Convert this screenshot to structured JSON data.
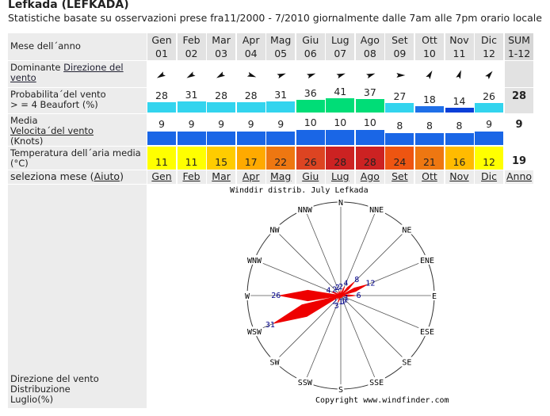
{
  "header": {
    "title": "Lefkada (LEFKADA)",
    "subtitle": "Statistiche basate su osservazioni prese fra11/2000 - 7/2010 giornalmente dalle 7am alle 7pm orario locale"
  },
  "table": {
    "month_label": "Mese dell´anno",
    "months": [
      "Gen",
      "Feb",
      "Mar",
      "Apr",
      "Mag",
      "Giu",
      "Lug",
      "Ago",
      "Set",
      "Ott",
      "Nov",
      "Dic",
      "SUM"
    ],
    "month_numbers": [
      "01",
      "02",
      "03",
      "04",
      "05",
      "06",
      "07",
      "08",
      "09",
      "10",
      "11",
      "12",
      "1-12"
    ],
    "direction": {
      "label": "Dominante",
      "label_link": "Direzione del vento",
      "wind_from_deg": [
        60,
        60,
        60,
        290,
        250,
        250,
        250,
        250,
        270,
        210,
        200,
        220,
        220
      ]
    },
    "probability": {
      "label": [
        "Probabilita´del vento",
        "> = 4 Beaufort (%)"
      ],
      "values": [
        28,
        31,
        28,
        28,
        31,
        36,
        41,
        37,
        27,
        18,
        14,
        26
      ],
      "sum": 28,
      "colors": [
        "#33d4ee",
        "#33d4ee",
        "#33d4ee",
        "#33d4ee",
        "#33d4ee",
        "#00dd77",
        "#00dd77",
        "#00dd77",
        "#33d4ee",
        "#1f6fe8",
        "#0a3fd8",
        "#33d4ee"
      ]
    },
    "speed": {
      "label": "Media",
      "label_link": "Velocita´del vento",
      "label_unit": "(Knots)",
      "values": [
        9,
        9,
        9,
        9,
        9,
        10,
        10,
        10,
        8,
        8,
        8,
        9
      ],
      "sum": 9,
      "color": "#1a66e6"
    },
    "temperature": {
      "label": [
        "Temperatura dell´aria media",
        "(°C)"
      ],
      "values": [
        11,
        11,
        15,
        17,
        22,
        26,
        28,
        28,
        24,
        21,
        16,
        12
      ],
      "sum": 19,
      "colors": [
        "#ffff00",
        "#ffff00",
        "#ffcc00",
        "#ffaa00",
        "#ee7711",
        "#dd4422",
        "#cc2222",
        "#cc2222",
        "#ee5511",
        "#ee7711",
        "#ffbb00",
        "#ffff00"
      ]
    },
    "select": {
      "label": "seleziona mese",
      "help_open": "(",
      "help": "Aiuto",
      "help_close": ")",
      "links": [
        "Gen",
        "Feb",
        "Mar",
        "Apr",
        "Mag",
        "Giu",
        "Lug",
        "Ago",
        "Set",
        "Ott",
        "Nov",
        "Dic",
        "Anno"
      ]
    }
  },
  "rose": {
    "title": "Winddir distrib. July  Lefkada",
    "directions": [
      "N",
      "NNE",
      "NE",
      "ENE",
      "E",
      "ESE",
      "SE",
      "SSE",
      "S",
      "SSW",
      "SW",
      "WSW",
      "W",
      "WNW",
      "NW",
      "NNW"
    ],
    "values": [
      2,
      4,
      8,
      12,
      6,
      1,
      1,
      1,
      1,
      3,
      2,
      31,
      26,
      4,
      2,
      2
    ],
    "rlim": [
      0,
      40
    ],
    "color": "#ee0000",
    "copyright": "Copyright www.windfinder.com",
    "label": [
      "Direzione del vento",
      "Distribuzione",
      "Luglio(%)"
    ]
  }
}
